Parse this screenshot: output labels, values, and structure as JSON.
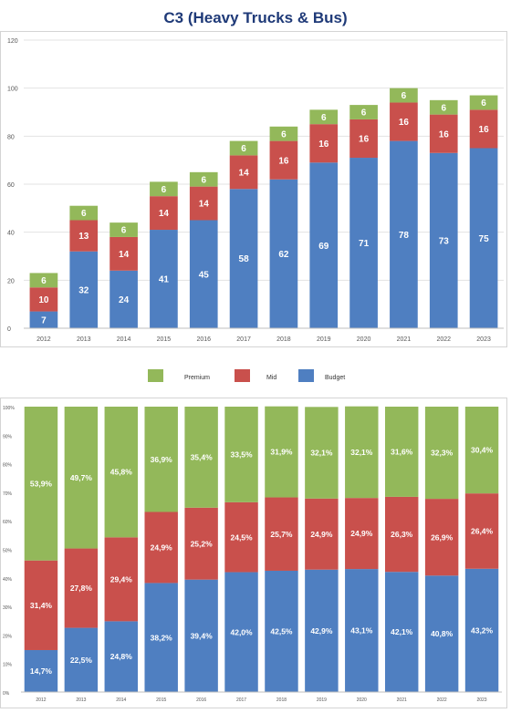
{
  "title": "C3 (Heavy Trucks & Bus)",
  "colors": {
    "budget": "#4f7fc1",
    "mid": "#c9504c",
    "premium": "#93b85a"
  },
  "legend": [
    {
      "name": "Premium",
      "color": "#93b85a"
    },
    {
      "name": "Mid",
      "color": "#c9504c"
    },
    {
      "name": "Budget",
      "color": "#4f7fc1"
    }
  ],
  "chart_data": [
    {
      "type": "bar",
      "stacked": true,
      "title": "C3 (Heavy Trucks & Bus)",
      "categories": [
        "2012",
        "2013",
        "2014",
        "2015",
        "2016",
        "2017",
        "2018",
        "2019",
        "2020",
        "2021",
        "2022",
        "2023"
      ],
      "series": [
        {
          "name": "Budget",
          "values": [
            7,
            32,
            24,
            41,
            45,
            58,
            62,
            69,
            71,
            78,
            73,
            75
          ]
        },
        {
          "name": "Mid",
          "values": [
            10,
            13,
            14,
            14,
            14,
            14,
            16,
            16,
            16,
            16,
            16,
            16
          ]
        },
        {
          "name": "Premium",
          "values": [
            6,
            6,
            6,
            6,
            6,
            6,
            6,
            6,
            6,
            6,
            6,
            6
          ]
        }
      ],
      "labels": {
        "Budget": [
          "7",
          "32",
          "24",
          "41",
          "45",
          "58",
          "62",
          "69",
          "71",
          "78",
          "73",
          "75"
        ],
        "Mid": [
          "10",
          "13",
          "14",
          "14",
          "14",
          "14",
          "16",
          "16",
          "16",
          "16",
          "16",
          "16"
        ],
        "Premium": [
          "6",
          "6",
          "6",
          "6",
          "6",
          "6",
          "6",
          "6",
          "6",
          "6",
          "6",
          "6"
        ]
      },
      "yticks": [
        "0",
        "20",
        "40",
        "60",
        "80",
        "100",
        "120"
      ],
      "ylim": [
        0,
        120
      ],
      "grid": true
    },
    {
      "type": "bar",
      "stacked": true,
      "percent": true,
      "categories": [
        "2012",
        "2013",
        "2014",
        "2015",
        "2016",
        "2017",
        "2018",
        "2019",
        "2020",
        "2021",
        "2022",
        "2023"
      ],
      "series": [
        {
          "name": "Budget",
          "values": [
            14.7,
            22.5,
            24.8,
            38.2,
            39.4,
            42.0,
            42.5,
            42.9,
            43.1,
            42.1,
            40.8,
            43.2
          ]
        },
        {
          "name": "Mid",
          "values": [
            31.4,
            27.8,
            29.4,
            24.9,
            25.2,
            24.5,
            25.7,
            24.9,
            24.9,
            26.3,
            26.9,
            26.4
          ]
        },
        {
          "name": "Premium",
          "values": [
            53.9,
            49.7,
            45.8,
            36.9,
            35.4,
            33.5,
            31.9,
            32.1,
            32.1,
            31.6,
            32.3,
            30.4
          ]
        }
      ],
      "labels": {
        "Budget": [
          "14,7%",
          "22,5%",
          "24,8%",
          "38,2%",
          "39,4%",
          "42,0%",
          "42,5%",
          "42,9%",
          "43,1%",
          "42,1%",
          "40,8%",
          "43,2%"
        ],
        "Mid": [
          "31,4%",
          "27,8%",
          "29,4%",
          "24,9%",
          "25,2%",
          "24,5%",
          "25,7%",
          "24,9%",
          "24,9%",
          "26,3%",
          "26,9%",
          "26,4%"
        ],
        "Premium": [
          "53,9%",
          "49,7%",
          "45,8%",
          "36,9%",
          "35,4%",
          "33,5%",
          "31,9%",
          "32,1%",
          "32,1%",
          "31,6%",
          "32,3%",
          "30,4%"
        ]
      },
      "yticks": [
        "0%",
        "10%",
        "20%",
        "30%",
        "40%",
        "50%",
        "60%",
        "70%",
        "80%",
        "90%",
        "100%"
      ],
      "ylim": [
        0,
        100
      ],
      "grid": false
    }
  ]
}
